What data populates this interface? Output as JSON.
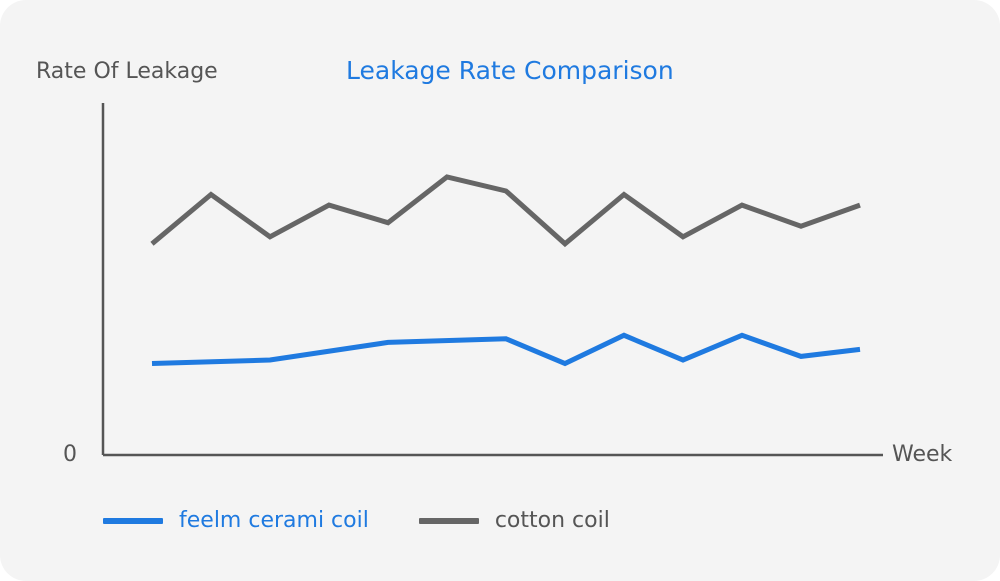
{
  "chart_data": {
    "type": "line",
    "title": "Leakage Rate Comparison",
    "xlabel": "Week",
    "ylabel": "Rate Of Leakage",
    "y_tick_labels": [
      "0"
    ],
    "ylim": [
      0,
      100
    ],
    "x": [
      1,
      2,
      3,
      4,
      5,
      6,
      7,
      8,
      9,
      10,
      11,
      12,
      13
    ],
    "grid": false,
    "legend_position": "bottom-left",
    "series": [
      {
        "name": "feelm cerami coil",
        "color": "#1f7ae0",
        "x": [
          1,
          3,
          5,
          7,
          8,
          9,
          10,
          11,
          12,
          13
        ],
        "values": [
          26,
          27,
          32,
          33,
          26,
          34,
          27,
          34,
          28,
          30
        ]
      },
      {
        "name": "cotton coil",
        "color": "#666666",
        "x": [
          1,
          2,
          3,
          4,
          5,
          6,
          7,
          8,
          9,
          10,
          11,
          12,
          13
        ],
        "values": [
          60,
          74,
          62,
          71,
          66,
          79,
          75,
          60,
          74,
          62,
          71,
          65,
          71
        ]
      }
    ]
  }
}
